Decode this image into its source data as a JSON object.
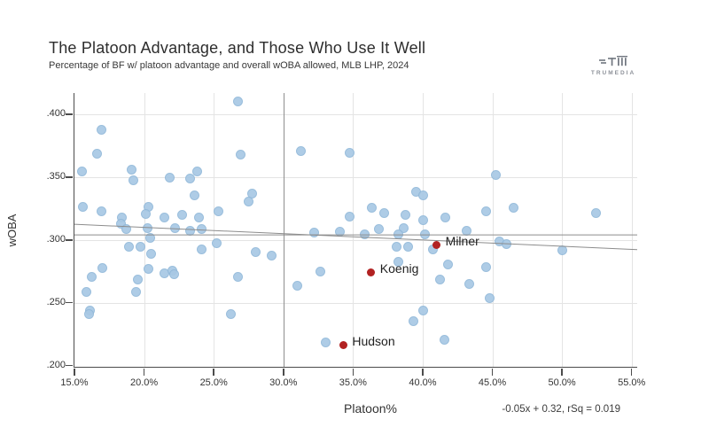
{
  "header": {
    "title": "The Platoon Advantage, and Those Who Use It Well",
    "subtitle": "Percentage of BF w/ platoon advantage and overall wOBA allowed, MLB LHP, 2024"
  },
  "logo": {
    "brand": "TRUMEDIA"
  },
  "chart_data": {
    "type": "scatter",
    "title": "The Platoon Advantage, and Those Who Use It Well",
    "subtitle": "Percentage of BF w/ platoon advantage and overall wOBA allowed, MLB LHP, 2024",
    "xlabel": "Platoon%",
    "ylabel": "wOBA",
    "annotation": "-0.05x + 0.32, rSq = 0.019",
    "grid": true,
    "legend_position": "none",
    "xlim": [
      15,
      55.4
    ],
    "ylim": [
      0.199,
      0.417
    ],
    "x_ticks": [
      {
        "v": 15,
        "label": "15.0%"
      },
      {
        "v": 20,
        "label": "20.0%"
      },
      {
        "v": 25,
        "label": "25.0%"
      },
      {
        "v": 30,
        "label": "30.0%"
      },
      {
        "v": 35,
        "label": "35.0%"
      },
      {
        "v": 40,
        "label": "40.0%"
      },
      {
        "v": 45,
        "label": "45.0%"
      },
      {
        "v": 50,
        "label": "50.0%"
      },
      {
        "v": 55,
        "label": "55.0%"
      }
    ],
    "y_ticks": [
      {
        "v": 0.4,
        "label": ".400"
      },
      {
        "v": 0.35,
        "label": ".350"
      },
      {
        "v": 0.3,
        "label": ".300"
      },
      {
        "v": 0.25,
        "label": ".250"
      },
      {
        "v": 0.2,
        "label": ".200"
      }
    ],
    "reference_lines": {
      "vertical_x": 30,
      "league_average_y": 0.304,
      "regression": {
        "equation": "-0.05x + 0.32",
        "rsq": 0.019,
        "x1": 15,
        "y1": 0.3125,
        "x2": 55.4,
        "y2": 0.2923
      }
    },
    "series": [
      {
        "name": "MLB LHP",
        "color": "#a8c8e4",
        "points": [
          [
            26.7,
            0.411
          ],
          [
            16.9,
            0.388
          ],
          [
            16.6,
            0.369
          ],
          [
            26.9,
            0.368
          ],
          [
            31.2,
            0.371
          ],
          [
            34.7,
            0.37
          ],
          [
            15.5,
            0.355
          ],
          [
            19.1,
            0.356
          ],
          [
            19.2,
            0.348
          ],
          [
            21.8,
            0.35
          ],
          [
            23.3,
            0.349
          ],
          [
            23.8,
            0.355
          ],
          [
            45.2,
            0.352
          ],
          [
            23.6,
            0.336
          ],
          [
            27.7,
            0.337
          ],
          [
            27.5,
            0.331
          ],
          [
            39.5,
            0.339
          ],
          [
            40.0,
            0.336
          ],
          [
            15.6,
            0.327
          ],
          [
            16.9,
            0.323
          ],
          [
            18.4,
            0.318
          ],
          [
            18.3,
            0.313
          ],
          [
            20.3,
            0.327
          ],
          [
            20.1,
            0.321
          ],
          [
            21.4,
            0.318
          ],
          [
            22.7,
            0.32
          ],
          [
            23.9,
            0.318
          ],
          [
            25.3,
            0.323
          ],
          [
            36.3,
            0.326
          ],
          [
            37.2,
            0.322
          ],
          [
            34.7,
            0.319
          ],
          [
            38.7,
            0.32
          ],
          [
            40.0,
            0.316
          ],
          [
            41.6,
            0.318
          ],
          [
            44.5,
            0.323
          ],
          [
            46.5,
            0.326
          ],
          [
            52.4,
            0.322
          ],
          [
            18.7,
            0.309
          ],
          [
            20.2,
            0.31
          ],
          [
            22.2,
            0.31
          ],
          [
            23.3,
            0.308
          ],
          [
            24.1,
            0.309
          ],
          [
            36.8,
            0.309
          ],
          [
            38.6,
            0.31
          ],
          [
            34.0,
            0.307
          ],
          [
            32.2,
            0.306
          ],
          [
            35.8,
            0.305
          ],
          [
            38.2,
            0.305
          ],
          [
            40.1,
            0.305
          ],
          [
            43.1,
            0.308
          ],
          [
            20.4,
            0.302
          ],
          [
            18.9,
            0.295
          ],
          [
            19.7,
            0.295
          ],
          [
            20.5,
            0.289
          ],
          [
            24.1,
            0.293
          ],
          [
            25.2,
            0.298
          ],
          [
            28.0,
            0.291
          ],
          [
            38.1,
            0.295
          ],
          [
            38.9,
            0.295
          ],
          [
            40.7,
            0.293
          ],
          [
            45.5,
            0.299
          ],
          [
            46.0,
            0.297
          ],
          [
            50.0,
            0.292
          ],
          [
            29.1,
            0.288
          ],
          [
            17.0,
            0.278
          ],
          [
            16.2,
            0.271
          ],
          [
            20.3,
            0.277
          ],
          [
            21.4,
            0.274
          ],
          [
            22.0,
            0.276
          ],
          [
            22.1,
            0.273
          ],
          [
            19.5,
            0.269
          ],
          [
            26.7,
            0.271
          ],
          [
            32.6,
            0.275
          ],
          [
            38.2,
            0.283
          ],
          [
            41.8,
            0.281
          ],
          [
            44.5,
            0.279
          ],
          [
            41.2,
            0.269
          ],
          [
            31.0,
            0.264
          ],
          [
            43.3,
            0.265
          ],
          [
            15.8,
            0.259
          ],
          [
            19.4,
            0.259
          ],
          [
            44.8,
            0.254
          ],
          [
            16.1,
            0.244
          ],
          [
            16.0,
            0.241
          ],
          [
            26.2,
            0.241
          ],
          [
            40.0,
            0.244
          ],
          [
            39.3,
            0.236
          ],
          [
            33.0,
            0.219
          ],
          [
            41.5,
            0.221
          ]
        ]
      },
      {
        "name": "highlighted",
        "color": "#b22222",
        "points": [
          {
            "name": "Milner",
            "x": 41.0,
            "y": 0.296
          },
          {
            "name": "Koenig",
            "x": 36.3,
            "y": 0.274
          },
          {
            "name": "Hudson",
            "x": 34.3,
            "y": 0.216
          }
        ]
      }
    ]
  }
}
